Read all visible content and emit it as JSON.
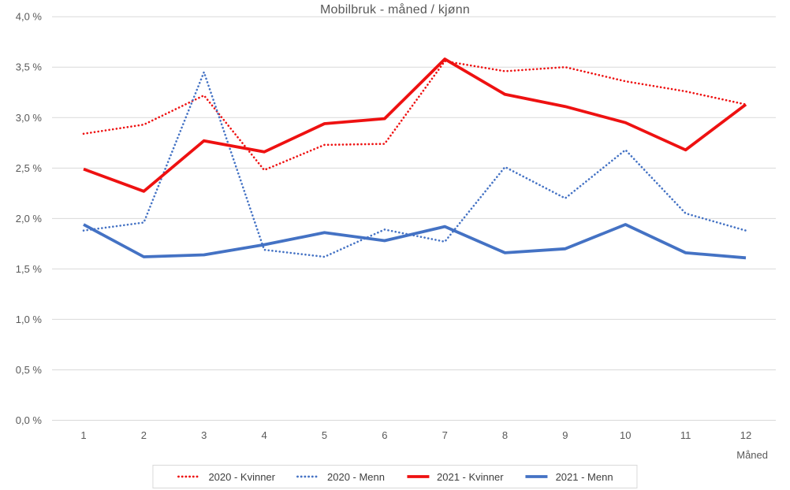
{
  "title": "Mobilbruk - måned / kjønn",
  "colors": {
    "background": "#ffffff",
    "grid": "#d9d9d9",
    "axis_text": "#595959",
    "title_text": "#595959",
    "legend_text": "#3f3f3f",
    "legend_border": "#d9d9d9",
    "series_red": "#ee1111",
    "series_blue": "#4472c4"
  },
  "chart_data": {
    "type": "line",
    "title": "Mobilbruk - måned / kjønn",
    "xlabel": "Måned",
    "ylabel": "",
    "x": [
      "1",
      "2",
      "3",
      "4",
      "5",
      "6",
      "7",
      "8",
      "9",
      "10",
      "11",
      "12"
    ],
    "ylim": [
      0,
      4
    ],
    "grid": true,
    "legend_position": "bottom",
    "y_ticks": [
      {
        "value": 0.0,
        "label": "0,0 %"
      },
      {
        "value": 0.5,
        "label": "0,5 %"
      },
      {
        "value": 1.0,
        "label": "1,0 %"
      },
      {
        "value": 1.5,
        "label": "1,5 %"
      },
      {
        "value": 2.0,
        "label": "2,0 %"
      },
      {
        "value": 2.5,
        "label": "2,5 %"
      },
      {
        "value": 3.0,
        "label": "3,0 %"
      },
      {
        "value": 3.5,
        "label": "3,5 %"
      },
      {
        "value": 4.0,
        "label": "4,0 %"
      }
    ],
    "series": [
      {
        "name": "2020 - Kvinner",
        "style": "dotted",
        "color": "#ee1111",
        "values": [
          2.84,
          2.93,
          3.22,
          2.48,
          2.73,
          2.74,
          3.56,
          3.46,
          3.5,
          3.36,
          3.26,
          3.13
        ]
      },
      {
        "name": "2020 - Menn",
        "style": "dotted",
        "color": "#4472c4",
        "values": [
          1.88,
          1.96,
          3.45,
          1.69,
          1.62,
          1.89,
          1.77,
          2.51,
          2.2,
          2.68,
          2.05,
          1.88
        ]
      },
      {
        "name": "2021 - Kvinner",
        "style": "solid",
        "color": "#ee1111",
        "values": [
          2.49,
          2.27,
          2.77,
          2.66,
          2.94,
          2.99,
          3.58,
          3.23,
          3.11,
          2.95,
          2.68,
          3.13
        ]
      },
      {
        "name": "2021 - Menn",
        "style": "solid",
        "color": "#4472c4",
        "values": [
          1.94,
          1.62,
          1.64,
          1.74,
          1.86,
          1.78,
          1.92,
          1.66,
          1.7,
          1.94,
          1.66,
          1.61
        ]
      }
    ]
  }
}
